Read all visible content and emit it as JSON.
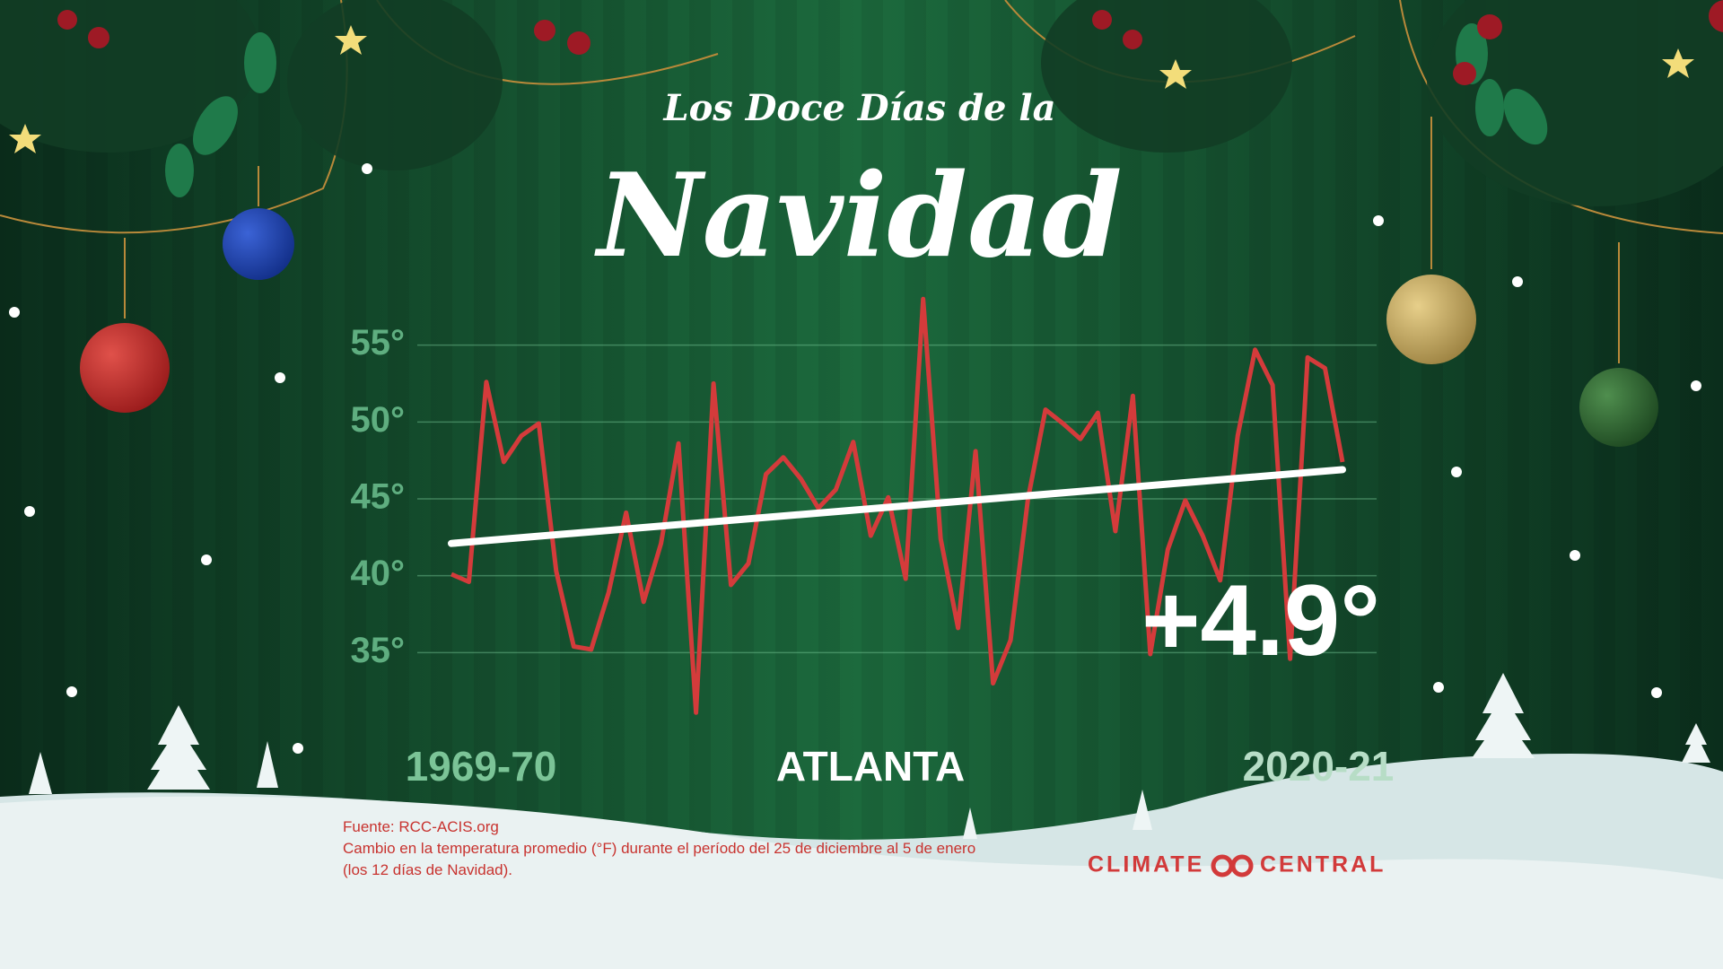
{
  "chart_data": {
    "type": "line",
    "title": "Los Doce Días de la",
    "subtitle": "Navidad",
    "location": "ATLANTA",
    "annotation": "+4.9°",
    "categories": [
      "1969-70",
      null,
      null,
      null,
      null,
      null,
      null,
      null,
      null,
      null,
      null,
      null,
      null,
      null,
      null,
      null,
      null,
      null,
      null,
      null,
      null,
      null,
      null,
      null,
      null,
      null,
      null,
      null,
      null,
      null,
      null,
      null,
      null,
      null,
      null,
      null,
      null,
      null,
      null,
      null,
      null,
      null,
      null,
      null,
      null,
      null,
      null,
      null,
      null,
      null,
      null,
      "2020-21"
    ],
    "values": [
      40.1,
      39.6,
      52.6,
      47.4,
      49.1,
      49.9,
      40.3,
      35.4,
      35.2,
      38.9,
      44.1,
      38.3,
      42.1,
      48.6,
      31.1,
      52.5,
      39.4,
      40.8,
      46.6,
      47.7,
      46.3,
      44.4,
      45.6,
      48.7,
      42.6,
      45.1,
      39.8,
      58.0,
      42.4,
      36.6,
      48.1,
      33.0,
      35.8,
      45.0,
      50.8,
      49.9,
      48.9,
      50.6,
      42.9,
      51.7,
      34.9,
      41.7,
      44.9,
      42.6,
      39.7,
      49.1,
      54.7,
      52.4,
      34.6,
      54.2,
      53.5,
      47.4
    ],
    "color": "#d43b3b",
    "trend": {
      "color": "#ffffff",
      "values": [
        42.1,
        46.9
      ]
    },
    "ylim": [
      30,
      60
    ],
    "yticks": [
      {
        "value": 35,
        "label": "35°"
      },
      {
        "value": 40,
        "label": "40°"
      },
      {
        "value": 45,
        "label": "45°"
      },
      {
        "value": 50,
        "label": "50°"
      },
      {
        "value": 55,
        "label": "55°"
      }
    ],
    "grid": true,
    "source": "Fuente: RCC-ACIS.org",
    "note": [
      "Cambio en la temperatura promedio (°F) durante el período del 25 de diciembre al 5 de enero",
      "(los 12 días de Navidad)."
    ],
    "logo": [
      "CLIMATE",
      "CENTRAL"
    ]
  }
}
